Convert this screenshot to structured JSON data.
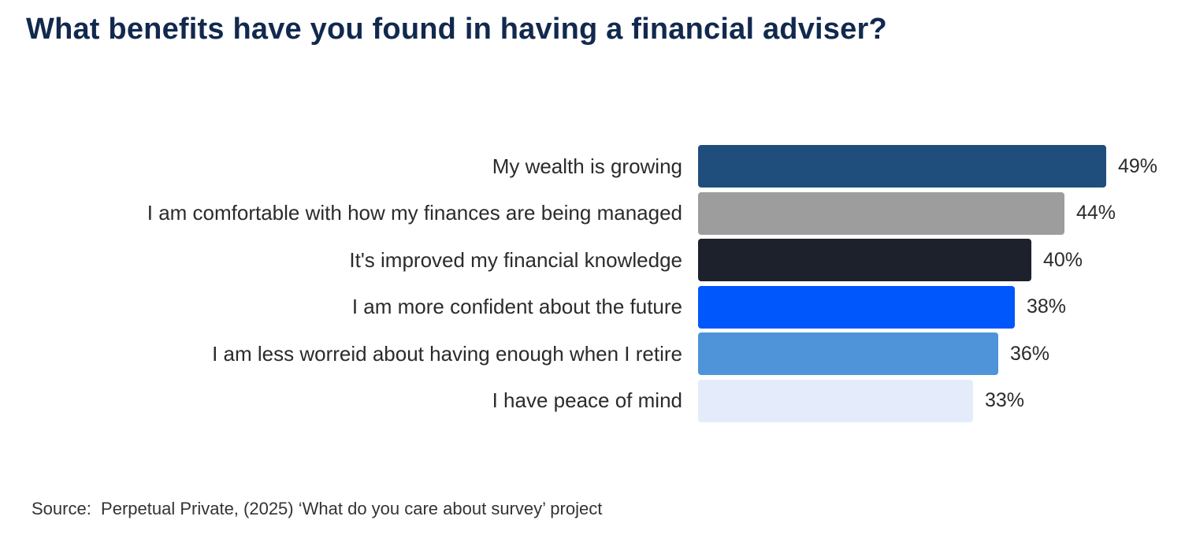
{
  "page": {
    "background": "#ffffff",
    "source": "Source:  Perpetual Private, (2025) ‘What do you care about survey’ project"
  },
  "chart_data": {
    "type": "bar",
    "orientation": "horizontal",
    "title": "What benefits have you found in having a financial adviser?",
    "xlabel": "",
    "ylabel": "",
    "xlim": [
      0,
      50
    ],
    "grid": false,
    "legend": false,
    "axes_hidden": true,
    "value_label_position": "right-of-bar",
    "categories": [
      "My wealth is growing",
      "I am comfortable with how my finances are being managed",
      "It's improved my financial knowledge",
      "I am more confident about the future",
      "I am less worreid about having enough when I retire",
      "I have peace of mind"
    ],
    "values": [
      49,
      44,
      40,
      38,
      36,
      33
    ],
    "unit": "%",
    "rows": [
      {
        "label": "My wealth is growing",
        "value": 49,
        "value_label": "49%",
        "color": "#1f4e7d"
      },
      {
        "label": "I am comfortable with how my finances are being managed",
        "value": 44,
        "value_label": "44%",
        "color": "#9d9d9d"
      },
      {
        "label": "It's improved my financial knowledge",
        "value": 40,
        "value_label": "40%",
        "color": "#1d212b"
      },
      {
        "label": "I am more confident about the future",
        "value": 38,
        "value_label": "38%",
        "color": "#0057fb"
      },
      {
        "label": "I am less worreid about having enough when I retire",
        "value": 36,
        "value_label": "36%",
        "color": "#4f93d8"
      },
      {
        "label": "I have peace of mind",
        "value": 33,
        "value_label": "33%",
        "color": "#e4ecfc"
      }
    ],
    "colors": {
      "title_text": "#12294e",
      "label_text": "#2b2b2b",
      "value_text": "#2b2b2b",
      "source_text": "#333333",
      "background": "#ffffff"
    }
  }
}
